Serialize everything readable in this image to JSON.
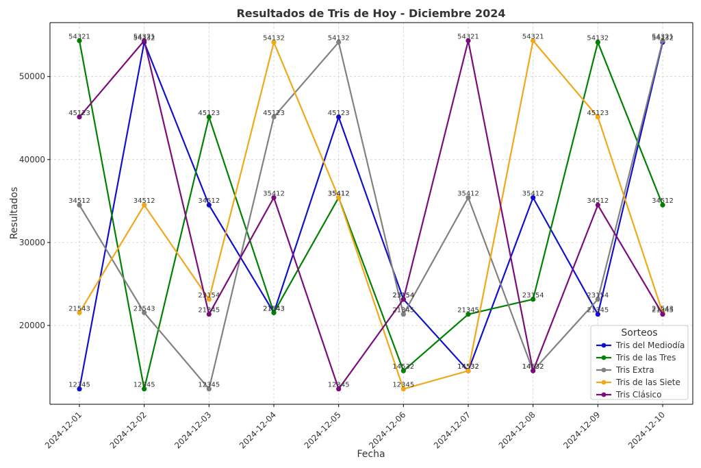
{
  "chart_data": {
    "type": "line",
    "title": "Resultados de Tris de Hoy - Diciembre 2024",
    "xlabel": "Fecha",
    "ylabel": "Resultados",
    "x": [
      "2024-12-01",
      "2024-12-02",
      "2024-12-03",
      "2024-12-04",
      "2024-12-05",
      "2024-12-06",
      "2024-12-07",
      "2024-12-08",
      "2024-12-09",
      "2024-12-10"
    ],
    "ylim": [
      10500,
      56500
    ],
    "yticks": [
      20000,
      30000,
      40000,
      50000
    ],
    "grid": true,
    "legend": {
      "title": "Sorteos",
      "position": "right"
    },
    "series": [
      {
        "name": "Tris del Mediodía",
        "color": "#1010cc",
        "values": [
          12345,
          54132,
          34512,
          21543,
          45123,
          23154,
          14532,
          35412,
          21345,
          54132
        ]
      },
      {
        "name": "Tris de las Tres",
        "color": "#008000",
        "values": [
          54321,
          12345,
          45123,
          21543,
          35412,
          14532,
          21345,
          23154,
          54132,
          34512
        ]
      },
      {
        "name": "Tris Extra",
        "color": "#808080",
        "values": [
          34512,
          21543,
          12345,
          45123,
          54132,
          21345,
          35412,
          14532,
          23154,
          54321
        ]
      },
      {
        "name": "Tris de las Siete",
        "color": "#f0a818",
        "values": [
          21543,
          34512,
          23154,
          54132,
          35412,
          12345,
          14532,
          54321,
          45123,
          21543
        ]
      },
      {
        "name": "Tris Clásico",
        "color": "#7b0a7b",
        "values": [
          45123,
          54321,
          21345,
          35412,
          12345,
          23154,
          54321,
          14532,
          34512,
          21345
        ]
      }
    ]
  }
}
